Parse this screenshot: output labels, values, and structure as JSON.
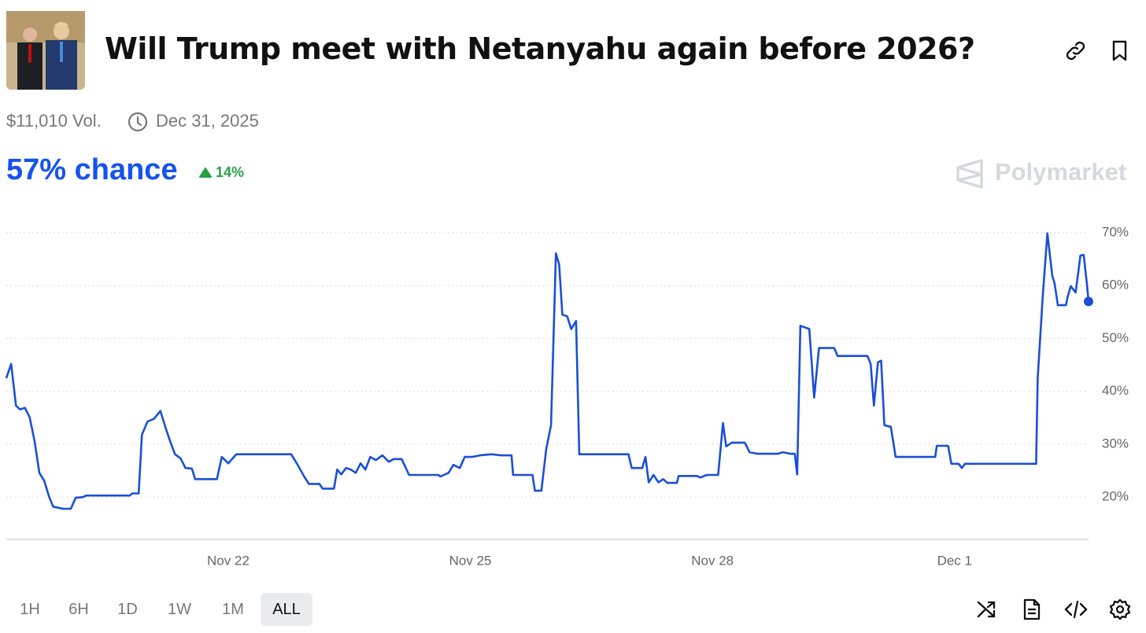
{
  "header": {
    "title": "Will Trump meet with Netanyahu again before 2026?",
    "volume": "$11,010 Vol.",
    "end_date": "Dec 31, 2025",
    "probability": "57% chance",
    "change": "14%",
    "watermark": "Polymarket"
  },
  "chart_data": {
    "type": "line",
    "color": "#1a4fd8",
    "grid": true,
    "x": [
      19.25,
      19.31,
      19.37,
      19.42,
      19.48,
      19.54,
      19.6,
      19.66,
      19.72,
      19.78,
      19.83,
      19.95,
      20.05,
      20.11,
      20.2,
      20.24,
      20.78,
      20.81,
      20.89,
      20.93,
      21.0,
      21.08,
      21.16,
      21.22,
      21.28,
      21.34,
      21.41,
      21.47,
      21.55,
      21.59,
      21.86,
      21.92,
      22.0,
      22.1,
      22.78,
      22.86,
      22.94,
      23.0,
      23.13,
      23.17,
      23.31,
      23.35,
      23.4,
      23.46,
      23.52,
      23.58,
      23.64,
      23.7,
      23.76,
      23.83,
      23.91,
      23.99,
      24.05,
      24.15,
      24.24,
      24.6,
      24.63,
      24.73,
      24.79,
      24.87,
      24.93,
      25.02,
      25.12,
      25.26,
      25.38,
      25.51,
      25.53,
      25.77,
      25.8,
      25.88,
      25.94,
      26.0,
      26.06,
      26.1,
      26.14,
      26.2,
      26.25,
      26.31,
      26.35,
      26.96,
      27.0,
      27.13,
      27.17,
      27.21,
      27.27,
      27.33,
      27.39,
      27.44,
      27.56,
      27.58,
      27.81,
      27.85,
      27.93,
      28.07,
      28.13,
      28.17,
      28.24,
      28.4,
      28.46,
      28.56,
      28.81,
      28.87,
      28.97,
      29.02,
      29.05,
      29.09,
      29.2,
      29.26,
      29.32,
      29.51,
      29.55,
      29.92,
      29.96,
      30.0,
      30.05,
      30.09,
      30.13,
      30.21,
      30.27,
      30.76,
      30.78,
      30.92,
      30.96,
      31.05,
      31.09,
      31.13,
      32.01,
      32.03,
      32.09,
      32.15,
      32.21,
      32.24,
      32.28,
      32.38,
      32.4,
      32.44,
      32.5,
      32.56,
      32.6,
      32.64,
      32.66
    ],
    "values": [
      42.5,
      45.2,
      37.3,
      36.6,
      36.9,
      35.1,
      30.6,
      24.6,
      23.1,
      20.1,
      18.2,
      17.8,
      17.8,
      19.9,
      20.0,
      20.3,
      20.3,
      20.7,
      20.7,
      31.8,
      34.3,
      34.8,
      36.3,
      33.3,
      30.6,
      28.1,
      27.3,
      25.5,
      25.4,
      23.4,
      23.4,
      27.6,
      26.4,
      28.1,
      28.1,
      26.1,
      23.9,
      22.5,
      22.5,
      21.6,
      21.6,
      25.2,
      24.3,
      25.5,
      25.2,
      24.6,
      26.4,
      25.2,
      27.6,
      27.0,
      27.9,
      26.7,
      27.2,
      27.2,
      24.2,
      24.2,
      23.9,
      24.6,
      26.1,
      25.5,
      27.6,
      27.6,
      27.9,
      28.1,
      27.9,
      27.9,
      24.2,
      24.2,
      21.2,
      21.2,
      29.1,
      33.6,
      66.1,
      64.0,
      54.5,
      54.2,
      51.8,
      53.3,
      28.1,
      28.1,
      25.5,
      25.5,
      27.6,
      22.8,
      24.2,
      22.8,
      23.4,
      22.7,
      22.7,
      24.0,
      24.0,
      23.7,
      24.2,
      24.2,
      34.0,
      29.6,
      30.3,
      30.3,
      28.5,
      28.2,
      28.2,
      28.5,
      28.2,
      28.2,
      24.3,
      52.4,
      51.8,
      38.8,
      48.2,
      48.2,
      46.7,
      46.7,
      45.2,
      37.3,
      45.5,
      45.8,
      33.6,
      33.3,
      27.6,
      27.6,
      29.7,
      29.7,
      26.3,
      26.3,
      25.5,
      26.3,
      26.3,
      42.5,
      57.5,
      69.9,
      61.9,
      60.4,
      56.3,
      56.3,
      57.8,
      59.9,
      58.7,
      65.7,
      65.8,
      60.4,
      57.0
    ],
    "xlim": [
      19.25,
      32.66
    ],
    "xticks": [
      {
        "value": 22,
        "label": "Nov 22"
      },
      {
        "value": 25,
        "label": "Nov 25"
      },
      {
        "value": 28,
        "label": "Nov 28"
      },
      {
        "value": 31,
        "label": "Dec 1"
      }
    ],
    "ylim": [
      12,
      70
    ],
    "yticks": [
      {
        "value": 20,
        "label": "20%"
      },
      {
        "value": 30,
        "label": "30%"
      },
      {
        "value": 40,
        "label": "40%"
      },
      {
        "value": 50,
        "label": "50%"
      },
      {
        "value": 60,
        "label": "60%"
      },
      {
        "value": 70,
        "label": "70%"
      }
    ]
  },
  "controls": {
    "ranges": [
      "1H",
      "6H",
      "1D",
      "1W",
      "1M",
      "ALL"
    ]
  }
}
